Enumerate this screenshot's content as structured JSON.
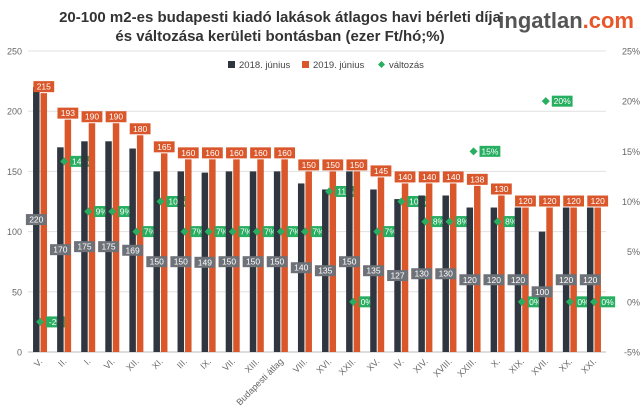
{
  "title": {
    "line1": "20-100 m2-es budapesti kiadó lakások átlagos havi bérleti díja",
    "line2": "és változása kerületi bontásban (ezer Ft/hó;%)"
  },
  "logo": {
    "name": "ingatlan",
    "suffix": ".com"
  },
  "colors": {
    "s2018": "#303640",
    "s2019": "#d9572b",
    "change": "#27ae60",
    "grid": "#e0e0e0",
    "axis_text": "#666666"
  },
  "chart_data": {
    "type": "bar",
    "categories": [
      "V.",
      "II.",
      "I.",
      "VI.",
      "XII.",
      "XI.",
      "III.",
      "IX.",
      "VII.",
      "XIII.",
      "Budapesti átlag",
      "VIII.",
      "XVI.",
      "XXII.",
      "XV.",
      "IV.",
      "XIV.",
      "XVIII.",
      "XXIII.",
      "X.",
      "XIX.",
      "XVII.",
      "XX.",
      "XXI."
    ],
    "series": [
      {
        "name": "2018. június",
        "values": [
          220,
          170,
          175,
          175,
          169,
          150,
          150,
          149,
          150,
          150,
          150,
          140,
          135,
          150,
          135,
          127,
          130,
          130,
          120,
          120,
          120,
          100,
          120,
          120
        ]
      },
      {
        "name": "2019. június",
        "values": [
          215,
          193,
          190,
          190,
          180,
          165,
          160,
          160,
          160,
          160,
          160,
          150,
          150,
          150,
          145,
          140,
          140,
          140,
          138,
          130,
          120,
          120,
          120,
          120
        ]
      },
      {
        "name": "változás",
        "values": [
          -2,
          14,
          9,
          9,
          7,
          10,
          7,
          7,
          7,
          7,
          7,
          7,
          11,
          0,
          7,
          10,
          8,
          8,
          15,
          8,
          0,
          20,
          0,
          0
        ]
      }
    ],
    "labels_2018": [
      "220",
      "170",
      "175",
      "175",
      "169",
      "150",
      "150",
      "149",
      "150",
      "150",
      "150",
      "140",
      "135",
      "150",
      "135",
      "127",
      "130",
      "130",
      "120",
      "120",
      "120",
      "100",
      "120",
      "120"
    ],
    "labels_2019": [
      "215",
      "193",
      "190",
      "190",
      "180",
      "165",
      "160",
      "160",
      "160",
      "160",
      "160",
      "150",
      "150",
      "150",
      "145",
      "140",
      "140",
      "140",
      "138",
      "130",
      "120",
      "120",
      "120",
      "120"
    ],
    "labels_change": [
      "-2%",
      "14%",
      "9%",
      "9%",
      "7%",
      "10%",
      "7%",
      "7%",
      "7%",
      "7%",
      "7%",
      "7%",
      "11%",
      "0%",
      "7%",
      "10%",
      "8%",
      "8%",
      "15%",
      "8%",
      "0%",
      "20%",
      "0%",
      "0%"
    ],
    "ylim_left": [
      0,
      250
    ],
    "yticks_left": [
      "0",
      "50",
      "100",
      "150",
      "200",
      "250"
    ],
    "ylim_right": [
      -5,
      25
    ],
    "yticks_right": [
      "-5%",
      "0%",
      "5%",
      "10%",
      "15%",
      "20%",
      "25%"
    ],
    "legend": {
      "position": "top",
      "items": [
        "2018. június",
        "2019. június",
        "változás"
      ]
    },
    "grid": true
  }
}
